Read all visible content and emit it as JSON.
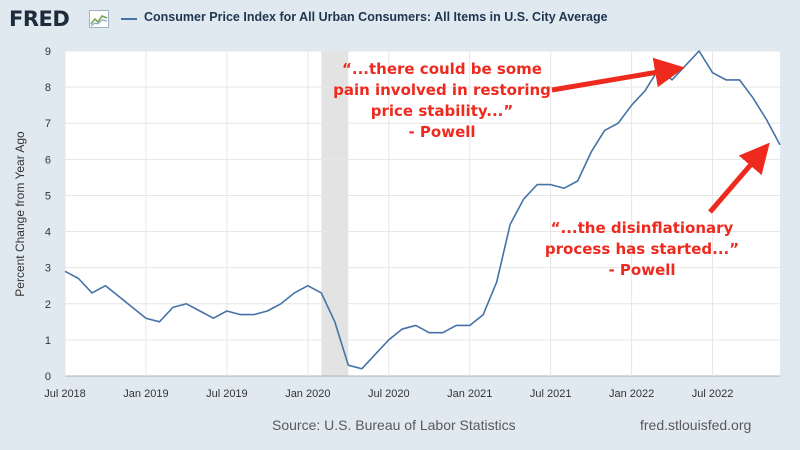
{
  "brand": {
    "logo_text": "FRED"
  },
  "legend": {
    "series_label": "Consumer Price Index for All Urban Consumers: All Items in U.S. City Average",
    "line_color": "#4572a7"
  },
  "footer": {
    "source": "Source: U.S. Bureau of Labor Statistics",
    "site": "fred.stlouisfed.org"
  },
  "annotations": [
    {
      "lines": [
        "“...there could be some",
        "pain involved in restoring",
        "price stability...”",
        "- Powell"
      ]
    },
    {
      "lines": [
        "“...the disinflationary",
        "process has started...”",
        "- Powell"
      ]
    }
  ],
  "colors": {
    "background": "#e1e9f0",
    "plot_bg": "#ffffff",
    "series": "#4572a7",
    "recession": "#e3e3e3",
    "annotation": "#ee2a1f"
  },
  "chart_data": {
    "type": "line",
    "title": "",
    "xlabel": "",
    "ylabel": "Percent Change from Year Ago",
    "ylim": [
      0,
      9
    ],
    "yticks": [
      0,
      1,
      2,
      3,
      4,
      5,
      6,
      7,
      8,
      9
    ],
    "xtick_labels": [
      "Jul 2018",
      "Jan 2019",
      "Jul 2019",
      "Jan 2020",
      "Jul 2020",
      "Jan 2021",
      "Jul 2021",
      "Jan 2022",
      "Jul 2022"
    ],
    "grid": true,
    "recession_shading": {
      "start": "2020-02",
      "end": "2020-04"
    },
    "series": [
      {
        "name": "Consumer Price Index for All Urban Consumers: All Items in U.S. City Average",
        "x": [
          "2018-07",
          "2018-08",
          "2018-09",
          "2018-10",
          "2018-11",
          "2018-12",
          "2019-01",
          "2019-02",
          "2019-03",
          "2019-04",
          "2019-05",
          "2019-06",
          "2019-07",
          "2019-08",
          "2019-09",
          "2019-10",
          "2019-11",
          "2019-12",
          "2020-01",
          "2020-02",
          "2020-03",
          "2020-04",
          "2020-05",
          "2020-06",
          "2020-07",
          "2020-08",
          "2020-09",
          "2020-10",
          "2020-11",
          "2020-12",
          "2021-01",
          "2021-02",
          "2021-03",
          "2021-04",
          "2021-05",
          "2021-06",
          "2021-07",
          "2021-08",
          "2021-09",
          "2021-10",
          "2021-11",
          "2021-12",
          "2022-01",
          "2022-02",
          "2022-03",
          "2022-04",
          "2022-05",
          "2022-06",
          "2022-07",
          "2022-08",
          "2022-09",
          "2022-10",
          "2022-11",
          "2022-12"
        ],
        "values": [
          2.9,
          2.7,
          2.3,
          2.5,
          2.2,
          1.9,
          1.6,
          1.5,
          1.9,
          2.0,
          1.8,
          1.6,
          1.8,
          1.7,
          1.7,
          1.8,
          2.0,
          2.3,
          2.5,
          2.3,
          1.5,
          0.3,
          0.2,
          0.6,
          1.0,
          1.3,
          1.4,
          1.2,
          1.2,
          1.4,
          1.4,
          1.7,
          2.6,
          4.2,
          4.9,
          5.3,
          5.3,
          5.2,
          5.4,
          6.2,
          6.8,
          7.0,
          7.5,
          7.9,
          8.5,
          8.2,
          8.6,
          9.0,
          8.4,
          8.2,
          8.2,
          7.7,
          7.1,
          6.4
        ]
      }
    ]
  }
}
